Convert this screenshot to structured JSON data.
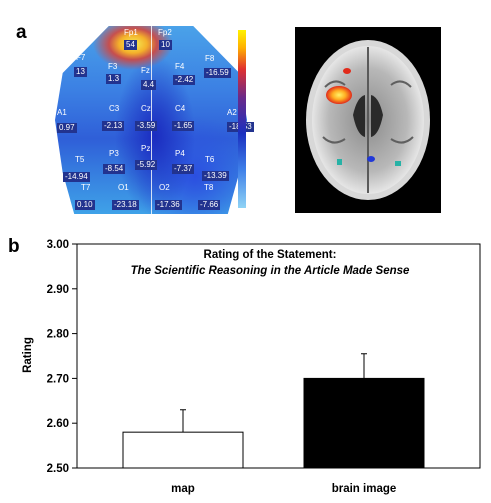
{
  "panel_labels": {
    "a": "a",
    "b": "b"
  },
  "topo_map": {
    "electrodes": [
      {
        "name": "Fp1",
        "value": "54"
      },
      {
        "name": "Fp2",
        "value": "10"
      },
      {
        "name": "F7",
        "value": "13"
      },
      {
        "name": "F3",
        "value": "1.3"
      },
      {
        "name": "Fz",
        "value": "4.4"
      },
      {
        "name": "F4",
        "value": "-2.42"
      },
      {
        "name": "F8",
        "value": "-16.59"
      },
      {
        "name": "A1",
        "value": "0.97"
      },
      {
        "name": "C3",
        "value": "-2.13"
      },
      {
        "name": "Cz",
        "value": "-3.59"
      },
      {
        "name": "C4",
        "value": "-1.65"
      },
      {
        "name": "A2",
        "value": "-18.53"
      },
      {
        "name": "T5",
        "value": "-14.94"
      },
      {
        "name": "P3",
        "value": "-8.54"
      },
      {
        "name": "Pz",
        "value": "-5.92"
      },
      {
        "name": "P4",
        "value": "-7.37"
      },
      {
        "name": "T6",
        "value": "-13.39"
      },
      {
        "name": "T7",
        "value": "0.10"
      },
      {
        "name": "O1",
        "value": "-23.18"
      },
      {
        "name": "O2",
        "value": "-17.36"
      },
      {
        "name": "T8",
        "value": "-7.66"
      }
    ]
  },
  "chart_data": {
    "type": "bar",
    "title": "Rating of the Statement:",
    "subtitle": "The Scientific Reasoning in the Article Made Sense",
    "xlabel": "",
    "ylabel": "Rating",
    "categories": [
      "map",
      "brain image"
    ],
    "values": [
      2.58,
      2.7
    ],
    "error_bars": [
      0.05,
      0.055
    ],
    "bar_colors": [
      "#ffffff",
      "#000000"
    ],
    "ylim": [
      2.5,
      3.0
    ],
    "yticks": [
      "2.50",
      "2.60",
      "2.70",
      "2.80",
      "2.90",
      "3.00"
    ],
    "grid": false
  }
}
